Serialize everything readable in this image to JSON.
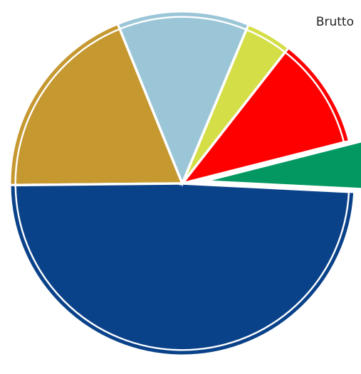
{
  "chart_data": {
    "type": "pie",
    "start_angle_deg": 112,
    "direction": "counterclockwise",
    "legend": {
      "placement": "top-right",
      "label": "Brutto"
    },
    "slices": [
      {
        "value": 20.0,
        "color": "#C59830",
        "exploded": false
      },
      {
        "value": 51.5,
        "color": "#0A428A",
        "exploded": false
      },
      {
        "value": 5.0,
        "color": "#039862",
        "exploded": true
      },
      {
        "value": 11.0,
        "color": "#FF0000",
        "exploded": false
      },
      {
        "value": 4.5,
        "color": "#D4DE46",
        "exploded": false
      },
      {
        "value": 13.0,
        "color": "#9BC6D8",
        "exploded": false
      }
    ]
  }
}
